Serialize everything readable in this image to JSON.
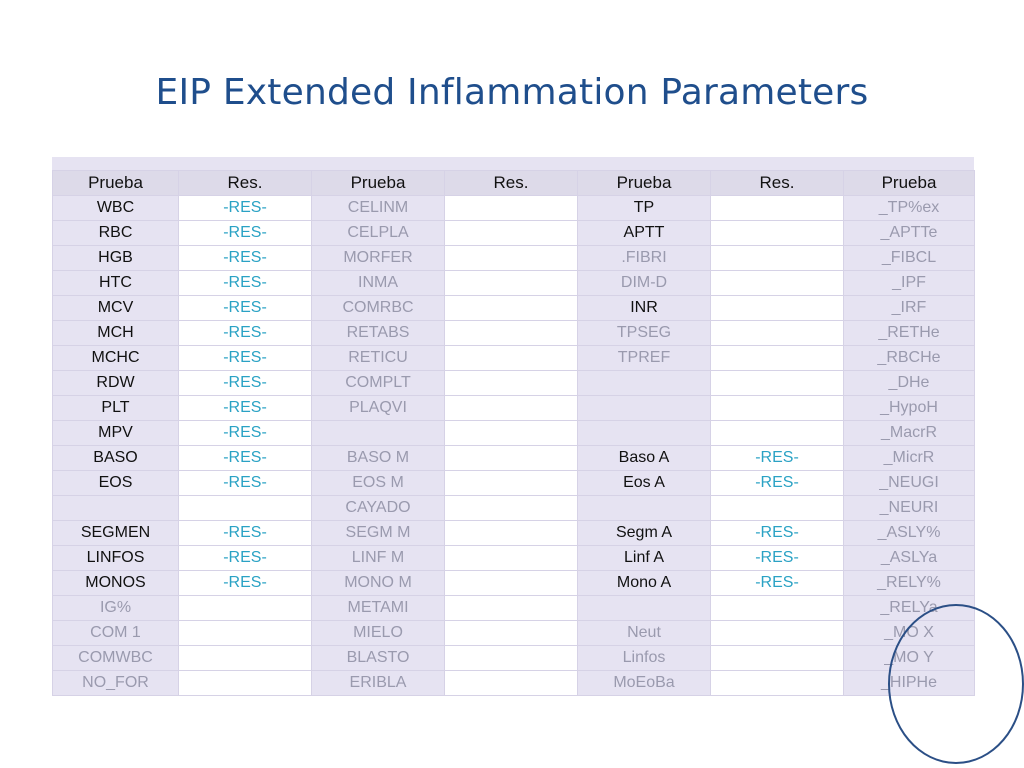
{
  "title": "EIP  Extended Inflammation Parameters",
  "colors": {
    "title": "#1f4e8c",
    "panel": "#e6e3f2",
    "header": "#dddae9",
    "result_text": "#2aa2c4",
    "dark_text": "#111111",
    "muted_text": "#9a9aae",
    "ellipse": "#2b4f86"
  },
  "table": {
    "headers": [
      "Prueba",
      "Res.",
      "Prueba",
      "Res.",
      "Prueba",
      "Res.",
      "Prueba"
    ],
    "rows": [
      [
        {
          "t": "WBC",
          "s": "dark"
        },
        {
          "t": "-RES-",
          "s": "res"
        },
        {
          "t": "CELINM",
          "s": "gray"
        },
        {
          "t": "",
          "s": ""
        },
        {
          "t": "TP",
          "s": "dark"
        },
        {
          "t": "",
          "s": ""
        },
        {
          "t": "_TP%ex",
          "s": "gray"
        }
      ],
      [
        {
          "t": "RBC",
          "s": "dark"
        },
        {
          "t": "-RES-",
          "s": "res"
        },
        {
          "t": "CELPLA",
          "s": "gray"
        },
        {
          "t": "",
          "s": ""
        },
        {
          "t": "APTT",
          "s": "dark"
        },
        {
          "t": "",
          "s": ""
        },
        {
          "t": "_APTTe",
          "s": "gray"
        }
      ],
      [
        {
          "t": "HGB",
          "s": "dark"
        },
        {
          "t": "-RES-",
          "s": "res"
        },
        {
          "t": "MORFER",
          "s": "gray"
        },
        {
          "t": "",
          "s": ""
        },
        {
          "t": ".FIBRI",
          "s": "gray"
        },
        {
          "t": "",
          "s": ""
        },
        {
          "t": "_FIBCL",
          "s": "gray"
        }
      ],
      [
        {
          "t": "HTC",
          "s": "dark"
        },
        {
          "t": "-RES-",
          "s": "res"
        },
        {
          "t": "INMA",
          "s": "gray"
        },
        {
          "t": "",
          "s": ""
        },
        {
          "t": "DIM-D",
          "s": "gray"
        },
        {
          "t": "",
          "s": ""
        },
        {
          "t": "_IPF",
          "s": "gray"
        }
      ],
      [
        {
          "t": "MCV",
          "s": "dark"
        },
        {
          "t": "-RES-",
          "s": "res"
        },
        {
          "t": "COMRBC",
          "s": "gray"
        },
        {
          "t": "",
          "s": ""
        },
        {
          "t": "INR",
          "s": "dark"
        },
        {
          "t": "",
          "s": ""
        },
        {
          "t": "_IRF",
          "s": "gray"
        }
      ],
      [
        {
          "t": "MCH",
          "s": "dark"
        },
        {
          "t": "-RES-",
          "s": "res"
        },
        {
          "t": "RETABS",
          "s": "gray"
        },
        {
          "t": "",
          "s": ""
        },
        {
          "t": "TPSEG",
          "s": "gray"
        },
        {
          "t": "",
          "s": ""
        },
        {
          "t": "_RETHe",
          "s": "gray"
        }
      ],
      [
        {
          "t": "MCHC",
          "s": "dark"
        },
        {
          "t": "-RES-",
          "s": "res"
        },
        {
          "t": "RETICU",
          "s": "gray"
        },
        {
          "t": "",
          "s": ""
        },
        {
          "t": "TPREF",
          "s": "gray"
        },
        {
          "t": "",
          "s": ""
        },
        {
          "t": "_RBCHe",
          "s": "gray"
        }
      ],
      [
        {
          "t": "RDW",
          "s": "dark"
        },
        {
          "t": "-RES-",
          "s": "res"
        },
        {
          "t": "COMPLT",
          "s": "gray"
        },
        {
          "t": "",
          "s": ""
        },
        {
          "t": "",
          "s": ""
        },
        {
          "t": "",
          "s": ""
        },
        {
          "t": "_DHe",
          "s": "gray"
        }
      ],
      [
        {
          "t": "PLT",
          "s": "dark"
        },
        {
          "t": "-RES-",
          "s": "res"
        },
        {
          "t": "PLAQVI",
          "s": "gray"
        },
        {
          "t": "",
          "s": ""
        },
        {
          "t": "",
          "s": ""
        },
        {
          "t": "",
          "s": ""
        },
        {
          "t": "_HypoH",
          "s": "gray"
        }
      ],
      [
        {
          "t": "MPV",
          "s": "dark"
        },
        {
          "t": "-RES-",
          "s": "res"
        },
        {
          "t": "",
          "s": ""
        },
        {
          "t": "",
          "s": ""
        },
        {
          "t": "",
          "s": ""
        },
        {
          "t": "",
          "s": ""
        },
        {
          "t": "_MacrR",
          "s": "gray"
        }
      ],
      [
        {
          "t": "BASO",
          "s": "dark"
        },
        {
          "t": "-RES-",
          "s": "res"
        },
        {
          "t": "BASO M",
          "s": "gray"
        },
        {
          "t": "",
          "s": ""
        },
        {
          "t": "Baso A",
          "s": "dark"
        },
        {
          "t": "-RES-",
          "s": "res"
        },
        {
          "t": "_MicrR",
          "s": "gray"
        }
      ],
      [
        {
          "t": "EOS",
          "s": "dark"
        },
        {
          "t": "-RES-",
          "s": "res"
        },
        {
          "t": "EOS M",
          "s": "gray"
        },
        {
          "t": "",
          "s": ""
        },
        {
          "t": "Eos A",
          "s": "dark"
        },
        {
          "t": "-RES-",
          "s": "res"
        },
        {
          "t": "_NEUGI",
          "s": "gray"
        }
      ],
      [
        {
          "t": "",
          "s": ""
        },
        {
          "t": "",
          "s": ""
        },
        {
          "t": "CAYADO",
          "s": "gray"
        },
        {
          "t": "",
          "s": ""
        },
        {
          "t": "",
          "s": ""
        },
        {
          "t": "",
          "s": ""
        },
        {
          "t": "_NEURI",
          "s": "gray"
        }
      ],
      [
        {
          "t": "SEGMEN",
          "s": "dark"
        },
        {
          "t": "-RES-",
          "s": "res"
        },
        {
          "t": "SEGM M",
          "s": "gray"
        },
        {
          "t": "",
          "s": ""
        },
        {
          "t": "Segm A",
          "s": "dark"
        },
        {
          "t": "-RES-",
          "s": "res"
        },
        {
          "t": "_ASLY%",
          "s": "gray"
        }
      ],
      [
        {
          "t": "LINFOS",
          "s": "dark"
        },
        {
          "t": "-RES-",
          "s": "res"
        },
        {
          "t": "LINF M",
          "s": "gray"
        },
        {
          "t": "",
          "s": ""
        },
        {
          "t": "Linf A",
          "s": "dark"
        },
        {
          "t": "-RES-",
          "s": "res"
        },
        {
          "t": "_ASLYa",
          "s": "gray"
        }
      ],
      [
        {
          "t": "MONOS",
          "s": "dark"
        },
        {
          "t": "-RES-",
          "s": "res"
        },
        {
          "t": "MONO M",
          "s": "gray"
        },
        {
          "t": "",
          "s": ""
        },
        {
          "t": "Mono A",
          "s": "dark"
        },
        {
          "t": "-RES-",
          "s": "res"
        },
        {
          "t": "_RELY%",
          "s": "gray"
        }
      ],
      [
        {
          "t": "IG%",
          "s": "gray"
        },
        {
          "t": "",
          "s": ""
        },
        {
          "t": "METAMI",
          "s": "gray"
        },
        {
          "t": "",
          "s": ""
        },
        {
          "t": "",
          "s": ""
        },
        {
          "t": "",
          "s": ""
        },
        {
          "t": "_RELYa",
          "s": "gray"
        }
      ],
      [
        {
          "t": "COM 1",
          "s": "gray"
        },
        {
          "t": "",
          "s": ""
        },
        {
          "t": "MIELO",
          "s": "gray"
        },
        {
          "t": "",
          "s": ""
        },
        {
          "t": "Neut",
          "s": "gray"
        },
        {
          "t": "",
          "s": ""
        },
        {
          "t": "_MO X",
          "s": "gray"
        }
      ],
      [
        {
          "t": "COMWBC",
          "s": "gray"
        },
        {
          "t": "",
          "s": ""
        },
        {
          "t": "BLASTO",
          "s": "gray"
        },
        {
          "t": "",
          "s": ""
        },
        {
          "t": "Linfos",
          "s": "gray"
        },
        {
          "t": "",
          "s": ""
        },
        {
          "t": "_MO Y",
          "s": "gray"
        }
      ],
      [
        {
          "t": "NO_FOR",
          "s": "gray"
        },
        {
          "t": "",
          "s": ""
        },
        {
          "t": "ERIBLA",
          "s": "gray"
        },
        {
          "t": "",
          "s": ""
        },
        {
          "t": "MoEoBa",
          "s": "gray"
        },
        {
          "t": "",
          "s": ""
        },
        {
          "t": "_HIPHe",
          "s": "gray"
        }
      ]
    ]
  }
}
